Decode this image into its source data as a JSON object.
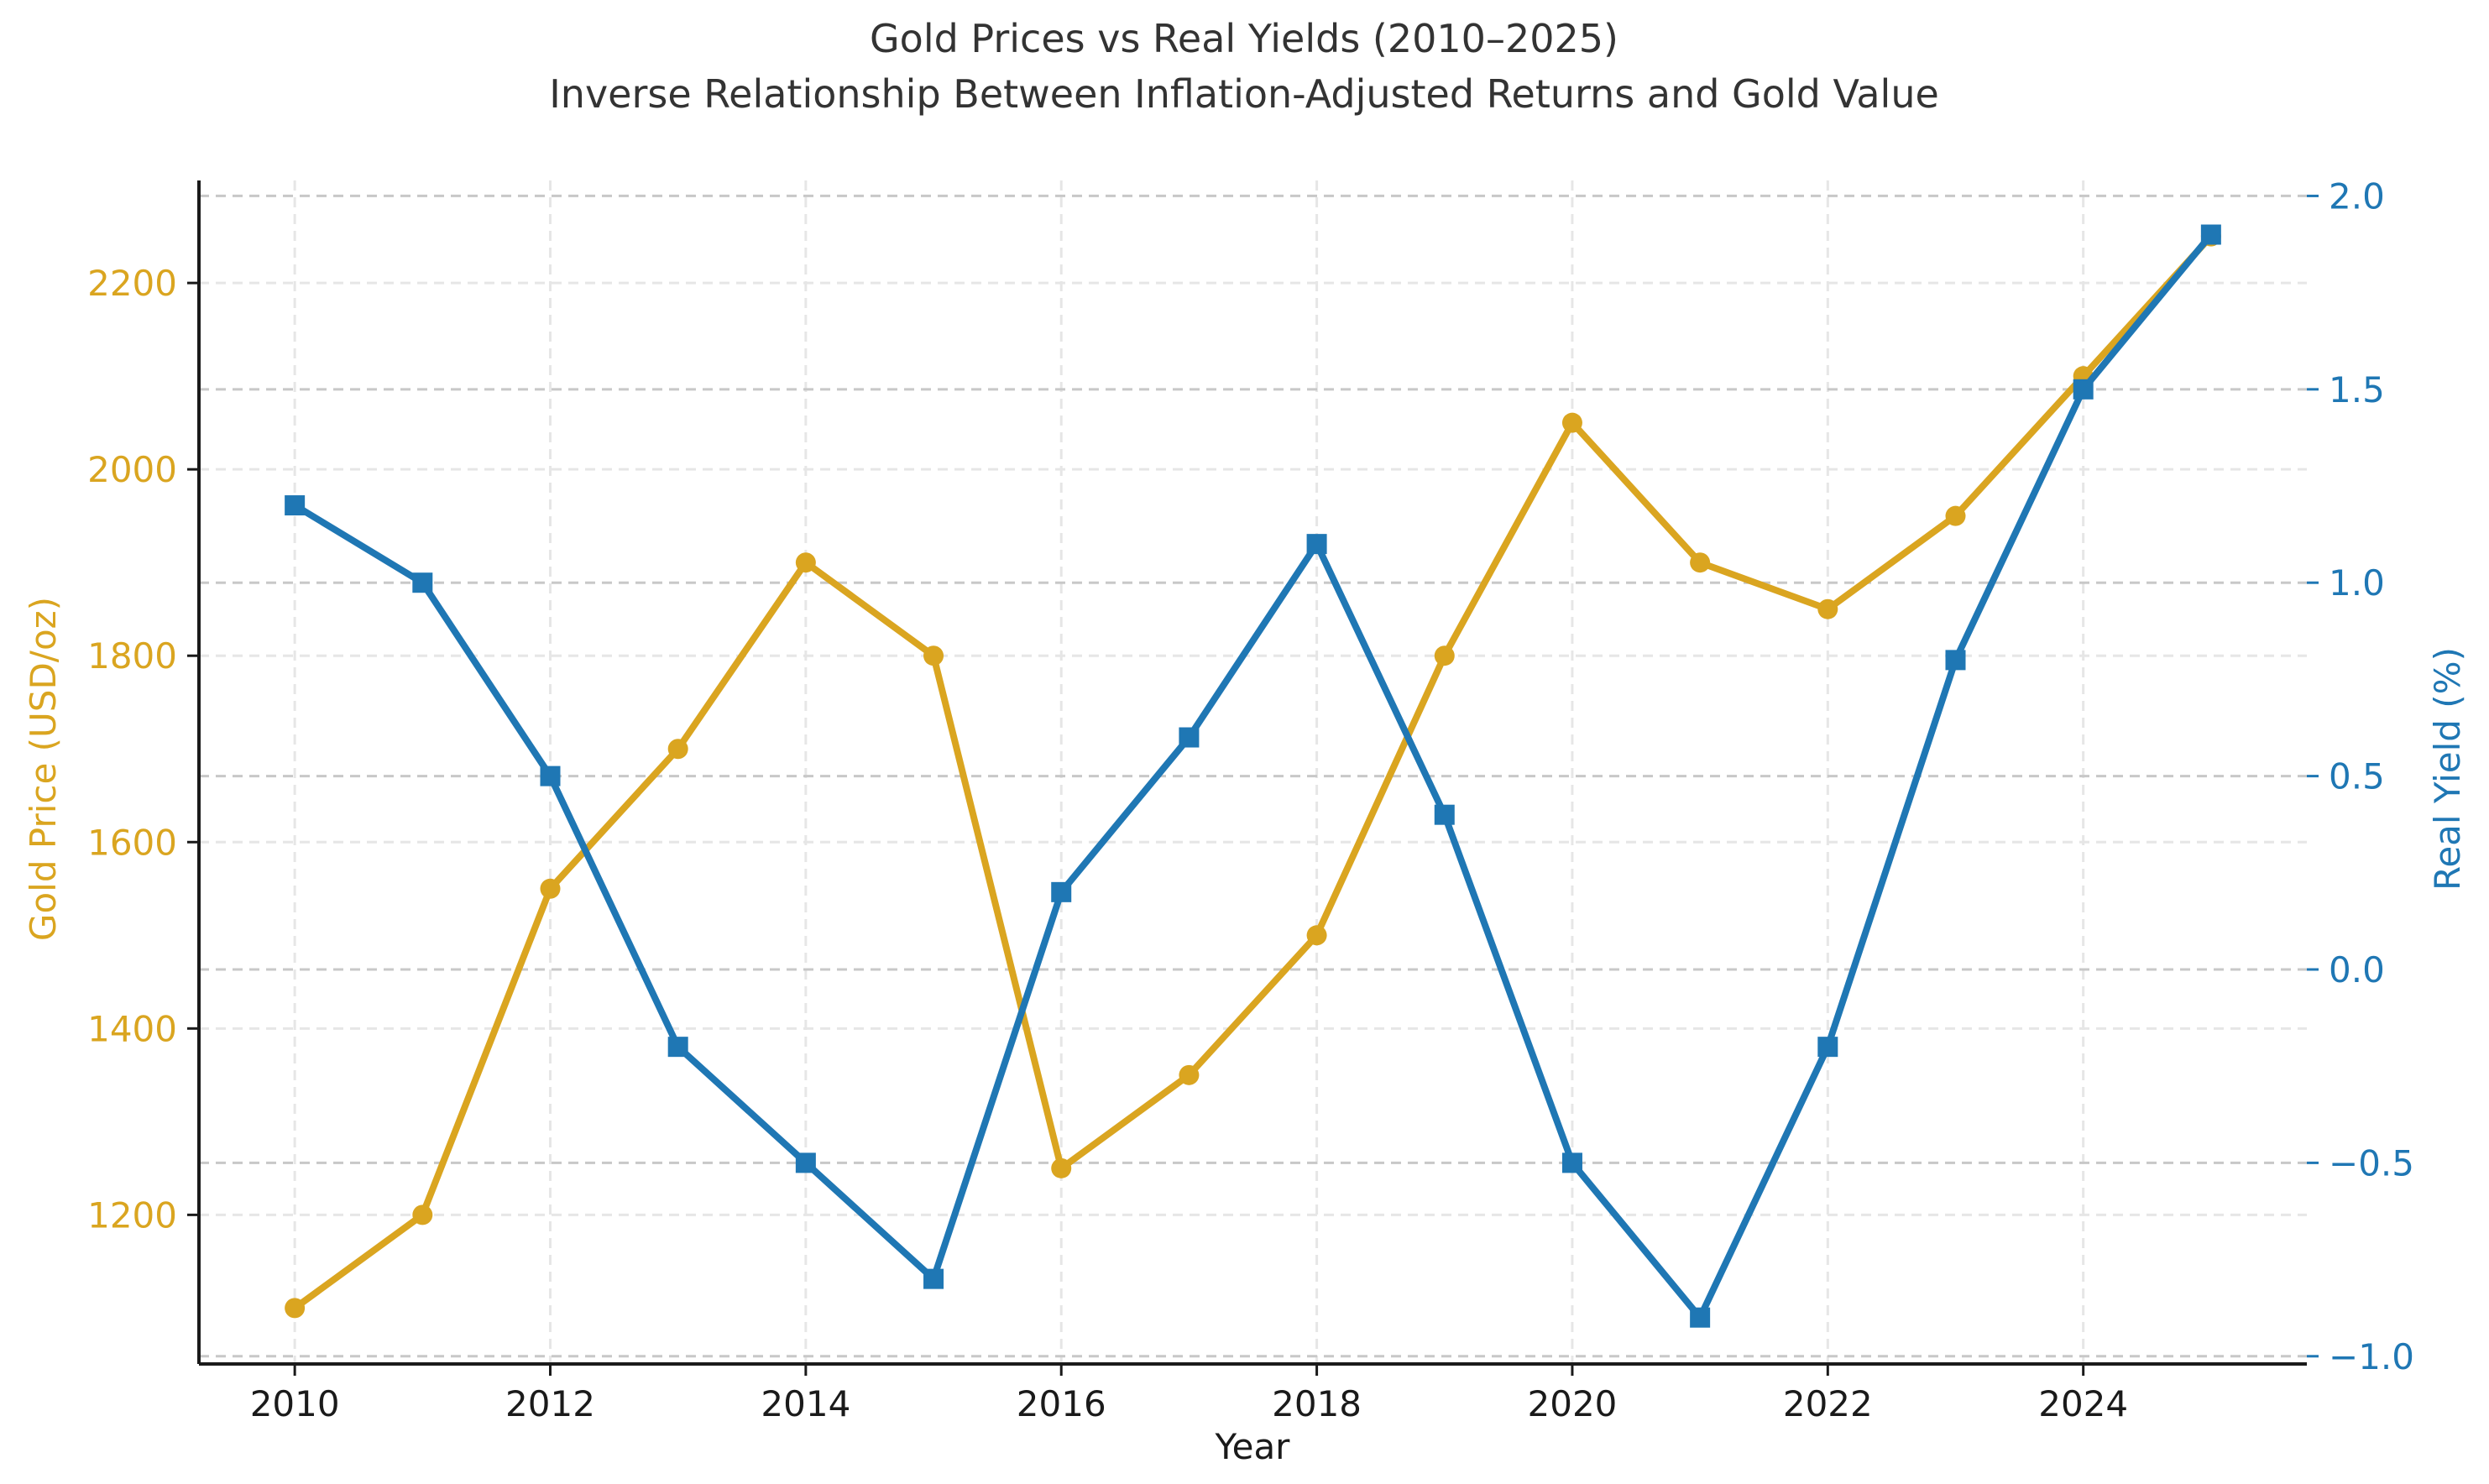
{
  "chart_data": {
    "type": "line",
    "title": "Gold Prices vs Real Yields (2010–2025)",
    "subtitle": "Inverse Relationship Between Inflation-Adjusted Returns and Gold Value",
    "xlabel": "Year",
    "ylabel_left": "Gold Price (USD/oz)",
    "ylabel_right": "Real Yield (%)",
    "x": [
      2010,
      2011,
      2012,
      2013,
      2014,
      2015,
      2016,
      2017,
      2018,
      2019,
      2020,
      2021,
      2022,
      2023,
      2024,
      2025
    ],
    "xticks": [
      "2010",
      "2012",
      "2014",
      "2016",
      "2018",
      "2020",
      "2022",
      "2024"
    ],
    "yticks_left": [
      "1200",
      "1400",
      "1600",
      "1800",
      "2000",
      "2200"
    ],
    "yticks_right": [
      "−1.0",
      "−0.5",
      "0.0",
      "0.5",
      "1.0",
      "1.5",
      "2.0"
    ],
    "xlim": [
      2009.25,
      2025.75
    ],
    "ylim_left": [
      1040,
      2310
    ],
    "ylim_right": [
      -1.02,
      2.04
    ],
    "grid": true,
    "series": [
      {
        "axis": "left",
        "marker": "circle",
        "color": "#DAA520",
        "values": [
          1100,
          1200,
          1550,
          1700,
          1900,
          1800,
          1250,
          1350,
          1500,
          1800,
          2050,
          1900,
          1850,
          1950,
          2100,
          2250
        ]
      },
      {
        "axis": "right",
        "marker": "square",
        "color": "#1F77B4",
        "values": [
          1.2,
          1.0,
          0.5,
          -0.2,
          -0.5,
          -0.8,
          0.2,
          0.6,
          1.1,
          0.4,
          -0.5,
          -0.9,
          -0.2,
          0.8,
          1.5,
          1.9
        ]
      }
    ]
  }
}
